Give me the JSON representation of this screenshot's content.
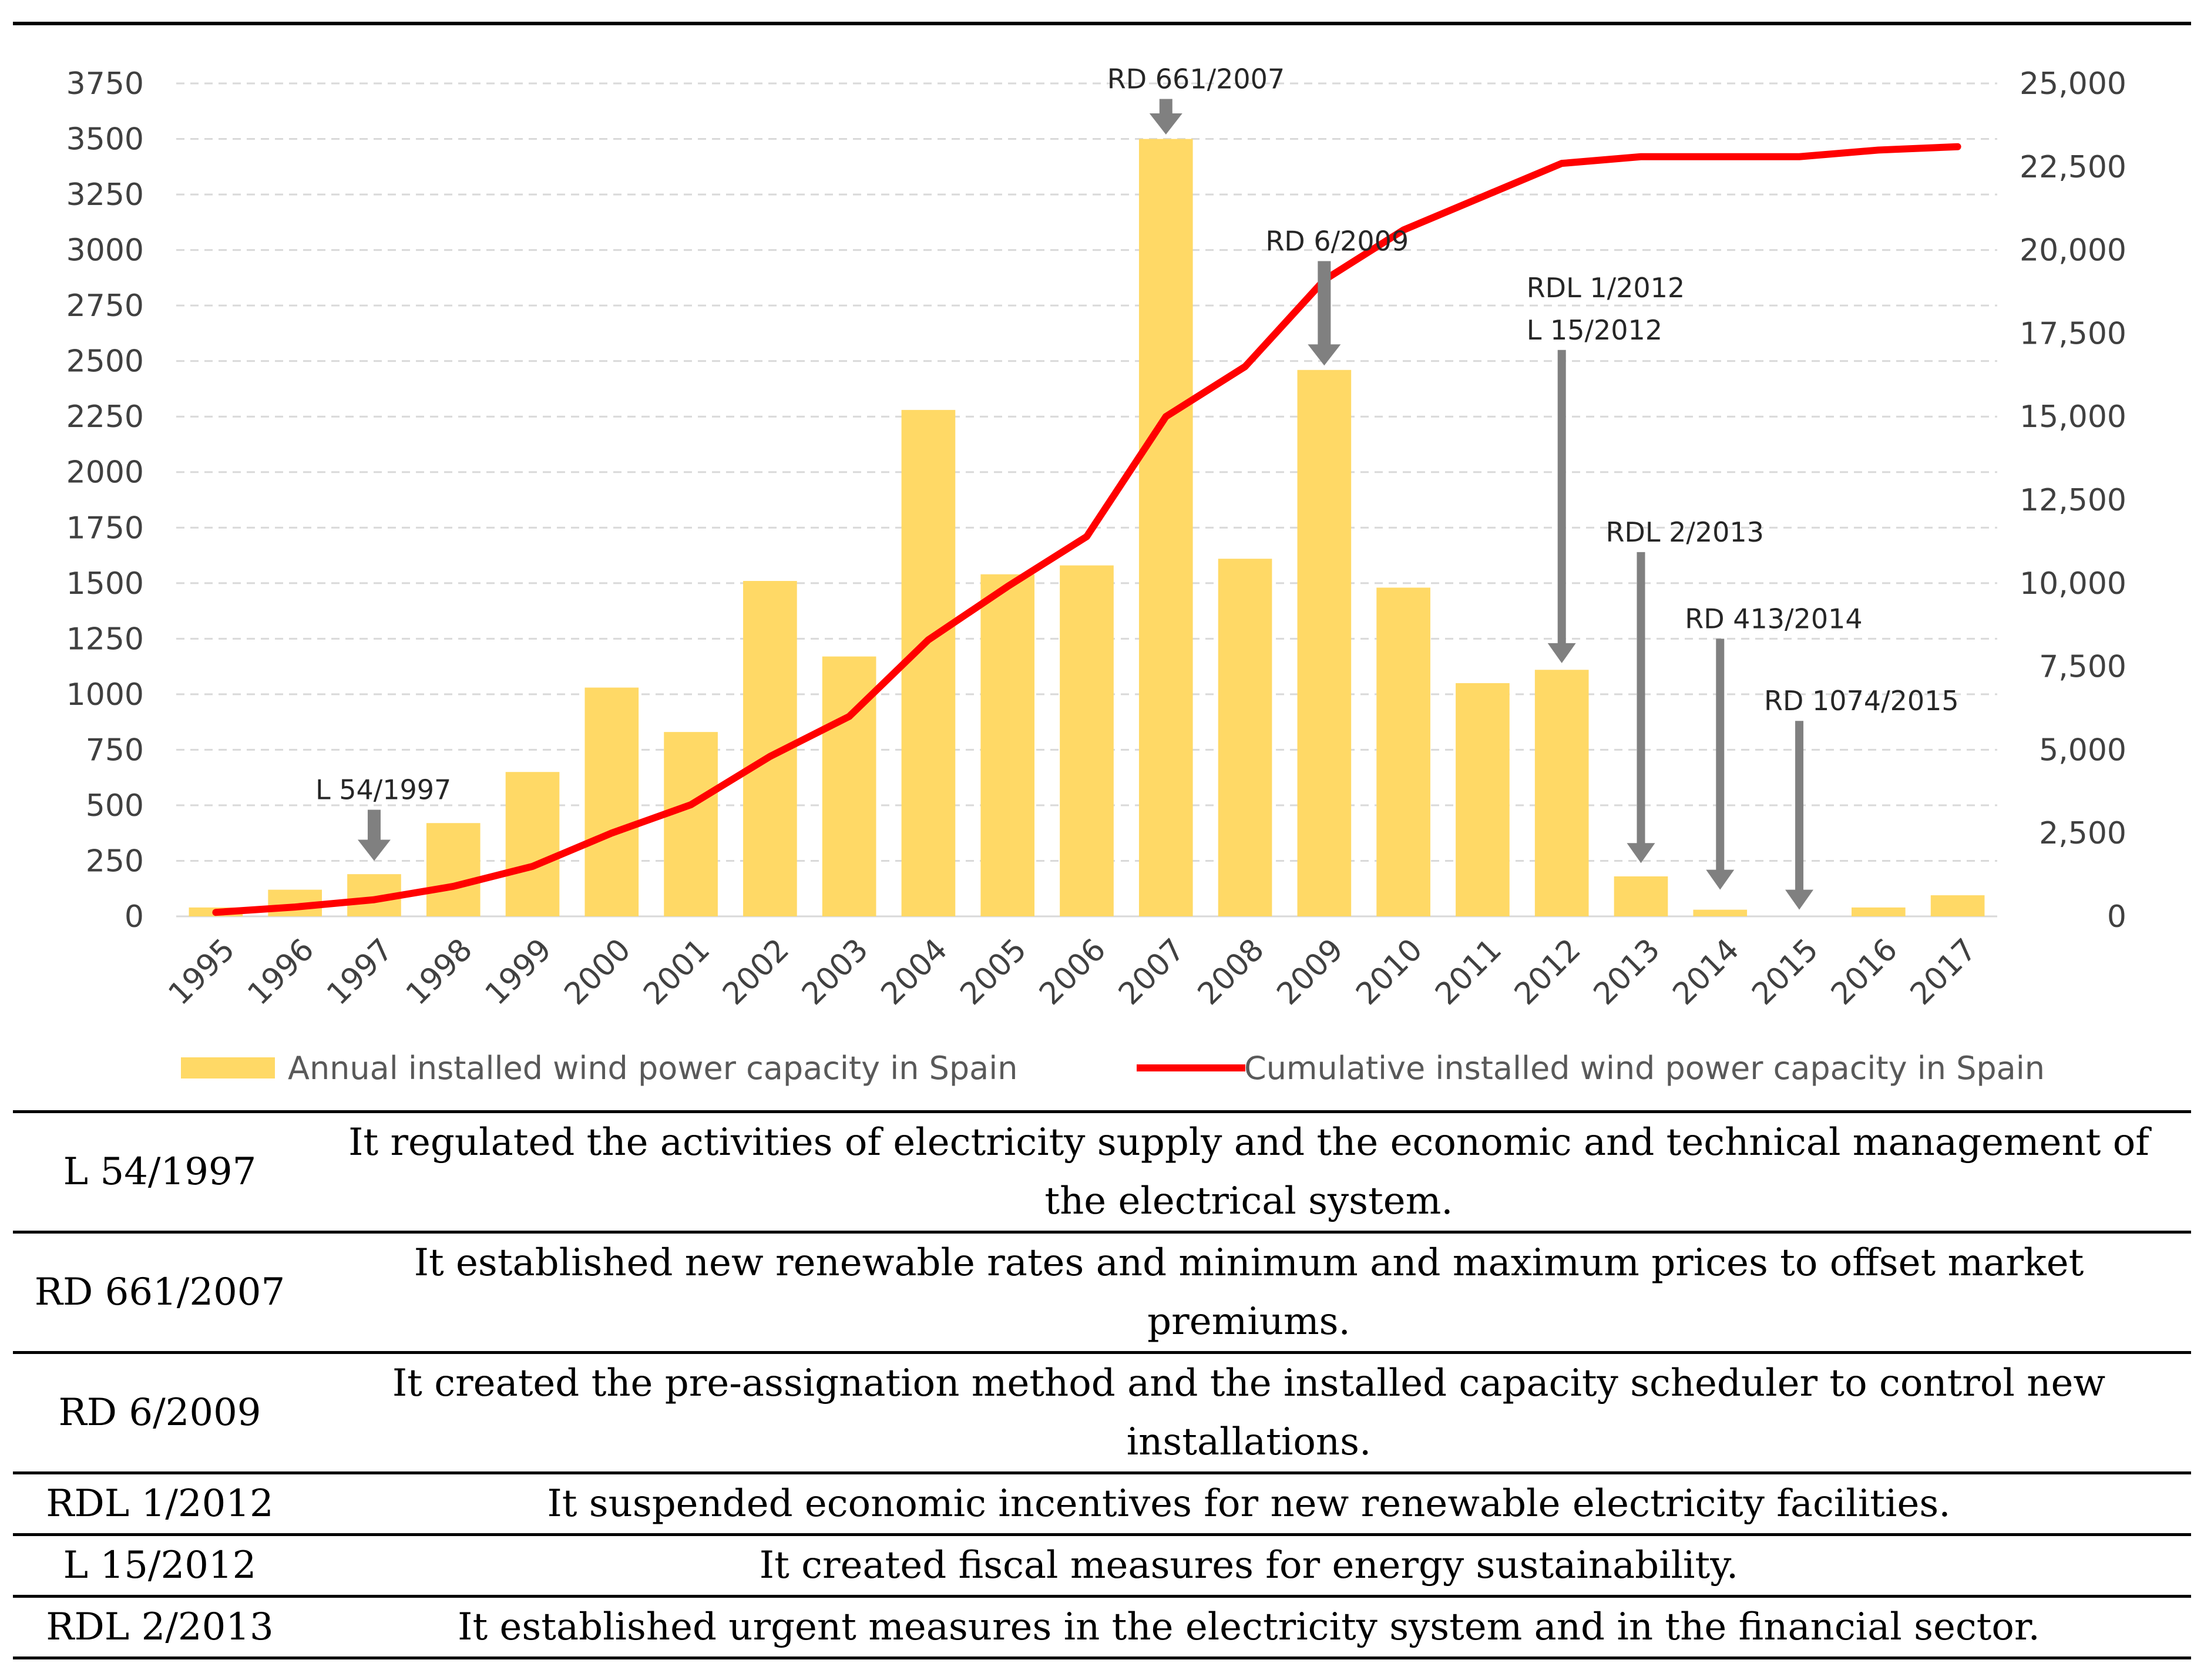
{
  "chart_data": {
    "type": "bar+line",
    "categories": [
      "1995",
      "1996",
      "1997",
      "1998",
      "1999",
      "2000",
      "2001",
      "2002",
      "2003",
      "2004",
      "2005",
      "2006",
      "2007",
      "2008",
      "2009",
      "2010",
      "2011",
      "2012",
      "2013",
      "2014",
      "2015",
      "2016",
      "2017"
    ],
    "series": [
      {
        "name": "Annual installed wind power capacity in Spain",
        "type": "bar",
        "axis": "left",
        "color": "#FFD966",
        "values": [
          40,
          120,
          190,
          420,
          650,
          1030,
          830,
          1510,
          1170,
          2280,
          1540,
          1580,
          3500,
          1610,
          2460,
          1480,
          1050,
          1110,
          180,
          30,
          0,
          40,
          95
        ]
      },
      {
        "name": "Cumulative installed wind power capacity in Spain",
        "type": "line",
        "axis": "right",
        "color": "#FF0000",
        "values": [
          120,
          280,
          500,
          900,
          1500,
          2500,
          3350,
          4800,
          6000,
          8300,
          9900,
          11400,
          15000,
          16500,
          19100,
          20600,
          21600,
          22600,
          22800,
          22800,
          22800,
          23000,
          23100
        ]
      }
    ],
    "y_left": {
      "min": 0,
      "max": 3750,
      "ticks": [
        "0",
        "250",
        "500",
        "750",
        "1000",
        "1250",
        "1500",
        "1750",
        "2000",
        "2250",
        "2500",
        "2750",
        "3000",
        "3250",
        "3500",
        "3750"
      ]
    },
    "y_right": {
      "min": 0,
      "max": 25000,
      "ticks": [
        "0",
        "2,500",
        "5,000",
        "7,500",
        "10,000",
        "12,500",
        "15,000",
        "17,500",
        "20,000",
        "22,500",
        "25,000"
      ]
    },
    "grid": true,
    "legend_position": "bottom",
    "annotations": [
      {
        "lines": [
          "L 54/1997"
        ],
        "year": "1997",
        "from_left": 480,
        "to_left": 250
      },
      {
        "lines": [
          "RD 661/2007"
        ],
        "year": "2007",
        "from_left": 3680,
        "to_left": 3520
      },
      {
        "lines": [
          "RD 6/2009"
        ],
        "year": "2009",
        "from_left": 2950,
        "to_left": 2480
      },
      {
        "lines": [
          "RDL 1/2012",
          "L 15/2012"
        ],
        "year": "2012",
        "from_left": 2550,
        "to_left": 1140
      },
      {
        "lines": [
          "RDL 2/2013"
        ],
        "year": "2013",
        "from_left": 1640,
        "to_left": 240
      },
      {
        "lines": [
          "RD 413/2014"
        ],
        "year": "2014",
        "from_left": 1250,
        "to_left": 120
      },
      {
        "lines": [
          "RD 1074/2015"
        ],
        "year": "2015",
        "from_left": 880,
        "to_left": 30
      }
    ]
  },
  "table": {
    "rows": [
      {
        "law": "L 54/1997",
        "description": "It regulated the activities of electricity supply and the economic and technical management of the electrical system."
      },
      {
        "law": "RD 661/2007",
        "description": "It established new renewable rates and minimum and maximum prices to offset market premiums."
      },
      {
        "law": "RD 6/2009",
        "description": "It created the pre-assignation method and the installed capacity scheduler to control new installations."
      },
      {
        "law": "RDL 1/2012",
        "description": "It suspended economic incentives for new renewable electricity facilities."
      },
      {
        "law": "L 15/2012",
        "description": "It created fiscal measures for energy sustainability."
      },
      {
        "law": "RDL 2/2013",
        "description": "It established urgent measures in the electricity system and in the financial sector."
      }
    ]
  }
}
